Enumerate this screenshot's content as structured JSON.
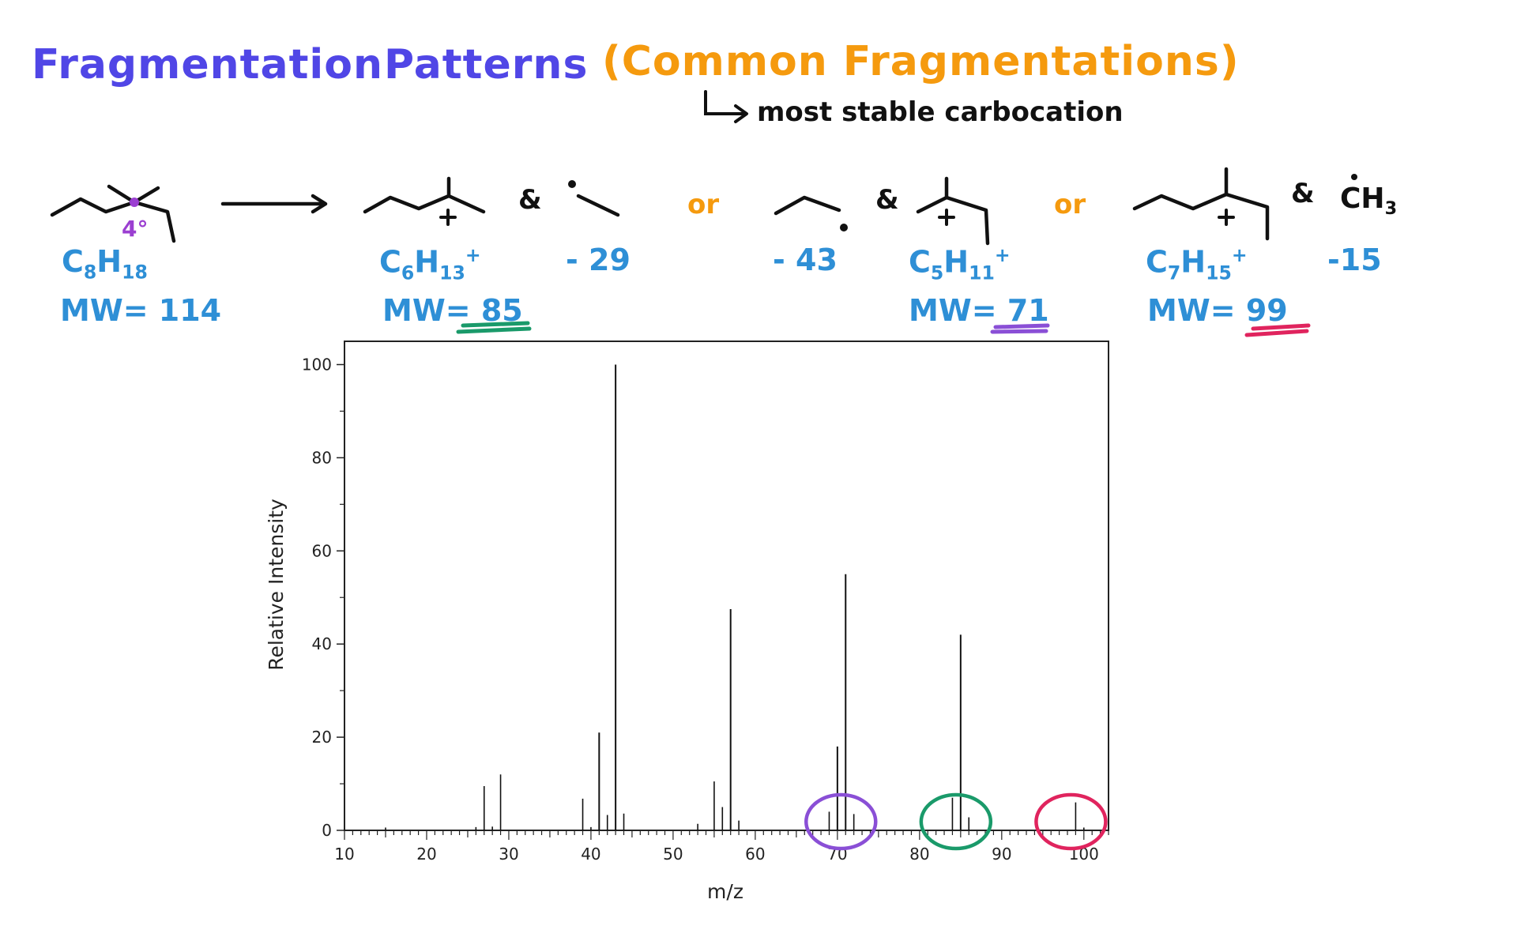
{
  "title": {
    "part1": "Fragmentation",
    "part2": "Patterns",
    "part3": "(Common Fragmentations)"
  },
  "note": "most stable carbocation",
  "parent": {
    "quaternary_label": "4°",
    "formula_c": "C",
    "formula_c_sub": "8",
    "formula_h": "H",
    "formula_h_sub": "18",
    "mw": "MW= 114"
  },
  "path1": {
    "and": "&",
    "cation_c": "C",
    "cation_c_sub": "6",
    "cation_h": "H",
    "cation_h_sub": "13",
    "cation_charge": "+",
    "loss": "- 29",
    "mw_prefix": "MW=",
    "mw_value": "85"
  },
  "path2": {
    "or": "or",
    "and": "&",
    "loss": "- 43",
    "cation_c": "C",
    "cation_c_sub": "5",
    "cation_h": "H",
    "cation_h_sub": "11",
    "cation_charge": "+",
    "mw_prefix": "MW=",
    "mw_value": "71"
  },
  "path3": {
    "or": "or",
    "and": "&",
    "radical_c": "C",
    "radical_h": "H",
    "radical_sub": "3",
    "loss": "-15",
    "cation_c": "C",
    "cation_c_sub": "7",
    "cation_h": "H",
    "cation_h_sub": "15",
    "cation_charge": "+",
    "mw_prefix": "MW=",
    "mw_value": "99"
  },
  "colors": {
    "title_blue": "#5046e6",
    "orange": "#f59a0e",
    "label_blue": "#2e8fd6",
    "purple": "#9b3fd1",
    "green": "#1a9a6a",
    "violet": "#8a4fd6",
    "crimson": "#e0245e"
  },
  "chart_data": {
    "type": "bar",
    "xlabel": "m/z",
    "ylabel": "Relative Intensity",
    "xlim": [
      10,
      103
    ],
    "ylim": [
      0,
      105
    ],
    "xticks": [
      10,
      20,
      30,
      40,
      50,
      60,
      70,
      80,
      90,
      100
    ],
    "yticks": [
      0,
      20,
      40,
      60,
      80,
      100
    ],
    "peaks": [
      {
        "mz": 15,
        "intensity": 0.6
      },
      {
        "mz": 26,
        "intensity": 0.7
      },
      {
        "mz": 27,
        "intensity": 9.5
      },
      {
        "mz": 28,
        "intensity": 0.8
      },
      {
        "mz": 29,
        "intensity": 12
      },
      {
        "mz": 39,
        "intensity": 6.8
      },
      {
        "mz": 40,
        "intensity": 0.7
      },
      {
        "mz": 41,
        "intensity": 21
      },
      {
        "mz": 42,
        "intensity": 3.3
      },
      {
        "mz": 43,
        "intensity": 100
      },
      {
        "mz": 44,
        "intensity": 3.6
      },
      {
        "mz": 53,
        "intensity": 1.4
      },
      {
        "mz": 55,
        "intensity": 10.5
      },
      {
        "mz": 56,
        "intensity": 5
      },
      {
        "mz": 57,
        "intensity": 47.5
      },
      {
        "mz": 58,
        "intensity": 2.1
      },
      {
        "mz": 69,
        "intensity": 4
      },
      {
        "mz": 70,
        "intensity": 18
      },
      {
        "mz": 71,
        "intensity": 55
      },
      {
        "mz": 72,
        "intensity": 3.5
      },
      {
        "mz": 84,
        "intensity": 7
      },
      {
        "mz": 85,
        "intensity": 42
      },
      {
        "mz": 86,
        "intensity": 2.8
      },
      {
        "mz": 99,
        "intensity": 6
      },
      {
        "mz": 100,
        "intensity": 0.6
      }
    ],
    "highlights": [
      {
        "mz": 71,
        "color": "#8a4fd6"
      },
      {
        "mz": 85,
        "color": "#1a9a6a"
      },
      {
        "mz": 99,
        "color": "#e0245e"
      }
    ]
  }
}
